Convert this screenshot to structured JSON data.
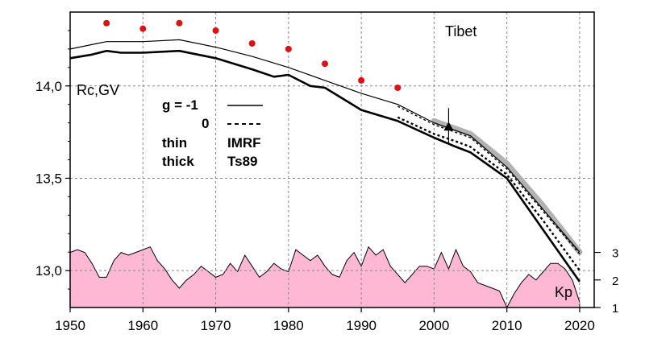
{
  "chart_data": {
    "type": "line",
    "title": "Tibet",
    "ylabel": "Rc,GV",
    "xlim": [
      1950,
      2022
    ],
    "ylim": [
      12.8,
      14.4
    ],
    "grid": true,
    "x_ticks": [
      "1950",
      "1960",
      "1970",
      "1980",
      "1990",
      "2000",
      "2010",
      "2020"
    ],
    "y_ticks": [
      "13,0",
      "13,5",
      "14,0"
    ],
    "legend": {
      "g_label": "g  = -1",
      "g_value_0": "0",
      "thin_label": "thin",
      "thin_model": "IMRF",
      "thick_label": "thick",
      "thick_model": "Ts89"
    },
    "colors": {
      "kp_fill": "#ffb8d4",
      "dots": "#dd1111",
      "grey_band": "#aaaaaa",
      "lines": "#000000"
    },
    "series": [
      {
        "style": "thin-solid",
        "x": [
          1950,
          1955,
          1960,
          1965,
          1970,
          1975,
          1980,
          1985,
          1990,
          1995,
          2000,
          2005,
          2010,
          2015,
          2020
        ],
        "y": [
          14.2,
          14.24,
          14.24,
          14.25,
          14.21,
          14.16,
          14.1,
          14.03,
          13.96,
          13.9,
          13.8,
          13.73,
          13.56,
          13.33,
          13.1
        ]
      },
      {
        "style": "thin-dashed",
        "x": [
          1995,
          2000,
          2005,
          2010,
          2015,
          2020
        ],
        "y": [
          13.89,
          13.79,
          13.72,
          13.55,
          13.32,
          13.09
        ]
      },
      {
        "style": "thick-solid",
        "x": [
          1950,
          1953,
          1955,
          1957,
          1960,
          1965,
          1970,
          1975,
          1978,
          1980,
          1983,
          1985,
          1990,
          1995,
          2000,
          2003,
          2005,
          2010,
          2015,
          2020
        ],
        "y": [
          14.15,
          14.17,
          14.19,
          14.18,
          14.18,
          14.19,
          14.15,
          14.09,
          14.05,
          14.06,
          14.0,
          13.99,
          13.87,
          13.81,
          13.72,
          13.67,
          13.64,
          13.5,
          13.22,
          12.94
        ]
      },
      {
        "style": "thick-dashed",
        "x": [
          1995,
          2000,
          2003,
          2005,
          2010,
          2015,
          2020
        ],
        "y": [
          13.83,
          13.74,
          13.7,
          13.67,
          13.52,
          13.27,
          13.0
        ]
      },
      {
        "style": "grey-band",
        "x": [
          2000,
          2005,
          2010,
          2015,
          2020
        ],
        "y": [
          13.81,
          13.74,
          13.58,
          13.35,
          13.1
        ]
      }
    ],
    "dots": {
      "x": [
        1955,
        1960,
        1965,
        1970,
        1975,
        1980,
        1985,
        1990,
        1995
      ],
      "y": [
        14.34,
        14.31,
        14.34,
        14.3,
        14.23,
        14.2,
        14.12,
        14.03,
        13.99
      ]
    },
    "marker": {
      "x": 2002,
      "y": 13.78,
      "err": [
        13.69,
        13.88
      ]
    },
    "kp": {
      "label": "Kp",
      "ticks": [
        "1",
        "2",
        "3"
      ],
      "range": [
        1,
        3
      ],
      "x": [
        1950,
        1951,
        1952,
        1953,
        1954,
        1955,
        1956,
        1957,
        1958,
        1959,
        1960,
        1961,
        1962,
        1963,
        1964,
        1965,
        1966,
        1967,
        1968,
        1969,
        1970,
        1971,
        1972,
        1973,
        1974,
        1975,
        1976,
        1977,
        1978,
        1979,
        1980,
        1981,
        1982,
        1983,
        1984,
        1985,
        1986,
        1987,
        1988,
        1989,
        1990,
        1991,
        1992,
        1993,
        1994,
        1995,
        1996,
        1997,
        1998,
        1999,
        2000,
        2001,
        2002,
        2003,
        2004,
        2005,
        2006,
        2007,
        2008,
        2009,
        2010,
        2011,
        2012,
        2013,
        2014,
        2015,
        2016,
        2017,
        2018,
        2019,
        2020
      ],
      "y": [
        3.0,
        3.1,
        3.0,
        2.6,
        2.1,
        2.1,
        2.7,
        3.0,
        2.9,
        3.0,
        3.1,
        3.2,
        2.7,
        2.4,
        2.0,
        1.7,
        2.0,
        2.2,
        2.5,
        2.3,
        2.1,
        2.2,
        2.6,
        2.3,
        2.9,
        2.5,
        2.1,
        2.3,
        2.6,
        2.4,
        2.3,
        3.1,
        2.9,
        2.7,
        2.9,
        2.5,
        2.2,
        2.1,
        2.7,
        3.0,
        2.5,
        3.2,
        2.9,
        3.1,
        2.5,
        2.2,
        1.9,
        2.2,
        2.5,
        2.5,
        2.4,
        3.0,
        2.4,
        3.1,
        2.5,
        2.3,
        1.9,
        1.8,
        1.7,
        1.6,
        1.0,
        1.5,
        1.9,
        2.2,
        2.0,
        2.3,
        2.6,
        2.6,
        2.4,
        2.0,
        1.2
      ]
    }
  }
}
